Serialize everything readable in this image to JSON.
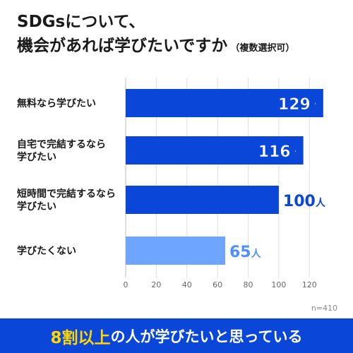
{
  "title": {
    "line1": "SDGsについて、",
    "line2": "機会があれば学びたいですか",
    "suffix": "（複数選択可）"
  },
  "sample_size": "n=410",
  "banner": {
    "highlight": "8割以上",
    "rest": "の人が学びたいと思っている"
  },
  "colors": {
    "bar_primary": "#0a47d8",
    "bar_secondary": "#6ea6ff",
    "label_primary": "#0a47d8",
    "label_secondary": "#4d8fff",
    "grid": "#dddddd",
    "banner_bg": "#0a47d8",
    "highlight": "#ffd600"
  },
  "chart_data": {
    "type": "bar",
    "orientation": "horizontal",
    "categories": [
      [
        "無料なら学びたい"
      ],
      [
        "自宅で完結するなら",
        "学びたい"
      ],
      [
        "短時間で完結するなら",
        "学びたい"
      ],
      [
        "学びたくない"
      ]
    ],
    "values": [
      129,
      116,
      100,
      65
    ],
    "value_unit": "人",
    "xlim": [
      0,
      130
    ],
    "xticks": [
      0,
      20,
      40,
      60,
      80,
      100,
      120
    ],
    "grid": true
  }
}
